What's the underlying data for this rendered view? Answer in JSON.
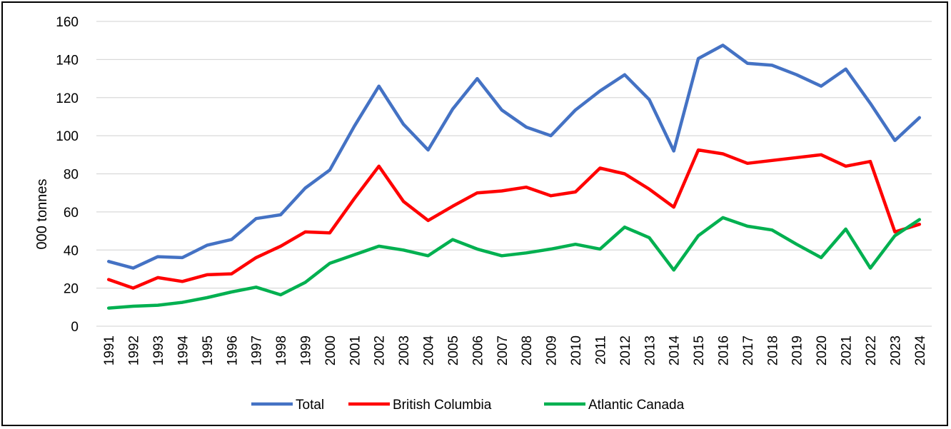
{
  "chart_data": {
    "type": "line",
    "ylabel": "000 tonnes",
    "ylim": [
      0,
      160
    ],
    "yticks": [
      0,
      20,
      40,
      60,
      80,
      100,
      120,
      140,
      160
    ],
    "grid": true,
    "legend_position": "bottom",
    "x": [
      "1991",
      "1992",
      "1993",
      "1994",
      "1995",
      "1996",
      "1997",
      "1998",
      "1999",
      "2000",
      "2001",
      "2002",
      "2003",
      "2004",
      "2005",
      "2006",
      "2007",
      "2008",
      "2009",
      "2010",
      "2011",
      "2012",
      "2013",
      "2014",
      "2015",
      "2016",
      "2017",
      "2018",
      "2019",
      "2020",
      "2021",
      "2022",
      "2023",
      "2024"
    ],
    "series": [
      {
        "name": "Total",
        "color": "#4472C4",
        "values": [
          34,
          30.5,
          36.5,
          36,
          42.5,
          45.5,
          56.5,
          58.5,
          72.5,
          82,
          105,
          126,
          106,
          92.5,
          114,
          130,
          113.5,
          104.5,
          100,
          113.5,
          123.5,
          132,
          119,
          92,
          140.5,
          147.5,
          138,
          137,
          132,
          126,
          135,
          117,
          97.5,
          109.5
        ]
      },
      {
        "name": "British Columbia",
        "color": "#FF0000",
        "values": [
          24.5,
          20,
          25.5,
          23.5,
          27,
          27.5,
          36,
          42,
          49.5,
          49,
          67,
          84,
          65.5,
          55.5,
          63,
          70,
          71,
          73,
          68.5,
          70.5,
          83,
          80,
          72,
          62.5,
          92.5,
          90.5,
          85.5,
          87,
          88.5,
          90,
          84,
          86.5,
          49.5,
          53.5
        ]
      },
      {
        "name": "Atlantic Canada",
        "color": "#00B050",
        "values": [
          9.5,
          10.5,
          11,
          12.5,
          15,
          18,
          20.5,
          16.5,
          23,
          33,
          37.5,
          42,
          40,
          37,
          45.5,
          40.5,
          37,
          38.5,
          40.5,
          43,
          40.5,
          52,
          46.5,
          29.5,
          47.5,
          57,
          52.5,
          50.5,
          43,
          36,
          51,
          30.5,
          47.5,
          56
        ]
      }
    ]
  }
}
